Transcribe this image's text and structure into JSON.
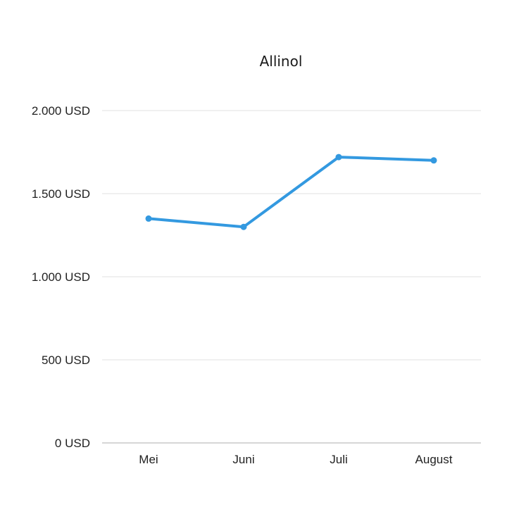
{
  "chart_data": {
    "type": "line",
    "title": "Allinol",
    "xlabel": "",
    "ylabel": "",
    "categories": [
      "Mei",
      "Juni",
      "Juli",
      "August"
    ],
    "series": [
      {
        "values": [
          1350,
          1300,
          1720,
          1700
        ]
      }
    ],
    "ylim": [
      0,
      2000
    ],
    "yticks": [
      0,
      500,
      1000,
      1500,
      2000
    ],
    "ytick_labels": [
      "0 USD",
      "500 USD",
      "1.000 USD",
      "1.500 USD",
      "2.000 USD"
    ],
    "grid": true,
    "legend": "none",
    "line_color": "#3399e0"
  }
}
